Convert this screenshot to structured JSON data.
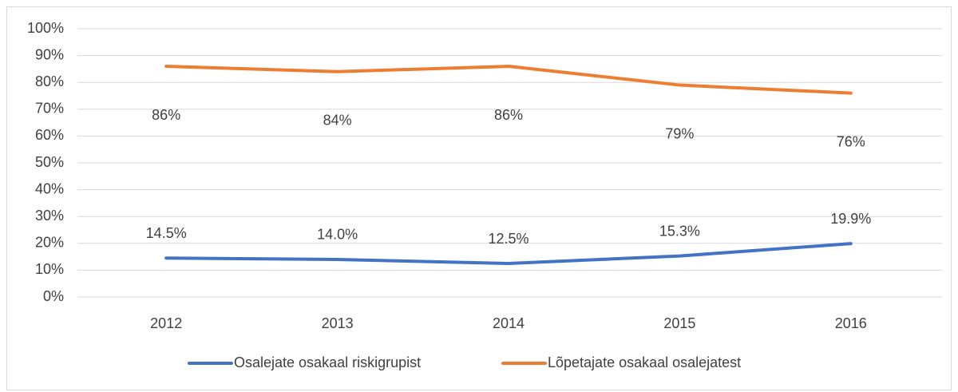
{
  "chart_data": {
    "type": "line",
    "categories": [
      "2012",
      "2013",
      "2014",
      "2015",
      "2016"
    ],
    "series": [
      {
        "name": "Osalejate osakaal riskigrupist",
        "color": "#4472c4",
        "values": [
          14.5,
          14.0,
          12.5,
          15.3,
          19.9
        ],
        "value_labels": [
          "14.5%",
          "14.0%",
          "12.5%",
          "15.3%",
          "19.9%"
        ]
      },
      {
        "name": "Lõpetajate osakaal osalejatest",
        "color": "#ed7d31",
        "values": [
          86,
          84,
          86,
          79,
          76
        ],
        "value_labels": [
          "86%",
          "84%",
          "86%",
          "79%",
          "76%"
        ]
      }
    ],
    "ylim": [
      0,
      100
    ],
    "yticks": [
      {
        "value": 0,
        "label": "0%"
      },
      {
        "value": 10,
        "label": "10%"
      },
      {
        "value": 20,
        "label": "20%"
      },
      {
        "value": 30,
        "label": "30%"
      },
      {
        "value": 40,
        "label": "40%"
      },
      {
        "value": 50,
        "label": "50%"
      },
      {
        "value": 60,
        "label": "60%"
      },
      {
        "value": 70,
        "label": "70%"
      },
      {
        "value": 80,
        "label": "80%"
      },
      {
        "value": 90,
        "label": "90%"
      },
      {
        "value": 100,
        "label": "100%"
      }
    ],
    "grid": true,
    "legend": "bottom"
  }
}
